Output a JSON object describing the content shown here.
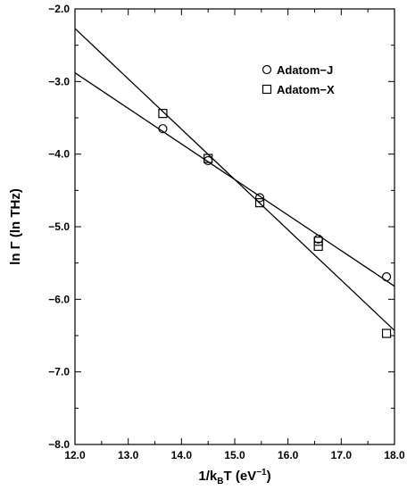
{
  "chart_data": {
    "type": "scatter",
    "title": "",
    "xlabel": "1/k_BT (eV^-1)",
    "ylabel": "ln Γ (ln THz)",
    "xlim": [
      12.0,
      18.0
    ],
    "ylim": [
      -8.0,
      -2.0
    ],
    "x_ticks": [
      "12.0",
      "13.0",
      "14.0",
      "15.0",
      "16.0",
      "17.0",
      "18.0"
    ],
    "y_ticks": [
      "-8.0",
      "-7.0",
      "-6.0",
      "-5.0",
      "-4.0",
      "-3.0",
      "-2.0"
    ],
    "x_tick_values": [
      12.0,
      13.0,
      14.0,
      15.0,
      16.0,
      17.0,
      18.0
    ],
    "y_tick_values": [
      -8.0,
      -7.0,
      -6.0,
      -5.0,
      -4.0,
      -3.0,
      -2.0
    ],
    "grid": false,
    "legend_position": "top-right",
    "series": [
      {
        "name": "Adatom−J",
        "marker": "circle",
        "x": [
          13.65,
          14.5,
          15.47,
          16.57,
          17.85
        ],
        "y": [
          -3.65,
          -4.09,
          -4.6,
          -5.17,
          -5.69
        ],
        "fit_line": {
          "x": [
            12.0,
            18.0
          ],
          "y": [
            -2.88,
            -5.82
          ]
        }
      },
      {
        "name": "Adatom−X",
        "marker": "square",
        "x": [
          13.65,
          14.5,
          15.47,
          16.57,
          16.57,
          17.85
        ],
        "y": [
          -3.44,
          -4.06,
          -4.67,
          -5.2,
          -5.27,
          -6.47
        ],
        "fit_line": {
          "x": [
            12.0,
            18.0
          ],
          "y": [
            -2.27,
            -6.43
          ]
        }
      }
    ]
  }
}
